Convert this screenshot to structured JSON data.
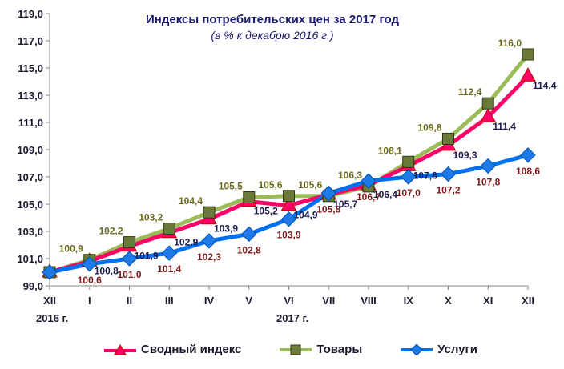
{
  "chart_data": {
    "type": "line",
    "title": "Индексы потребительских цен за  2017 год",
    "subtitle": "(в % к декабрю 2016 г.)",
    "categories": [
      "XII",
      "I",
      "II",
      "III",
      "IV",
      "V",
      "VI",
      "VII",
      "VIII",
      "IX",
      "X",
      "XI",
      "XII"
    ],
    "year_labels": {
      "first": "2016 г.",
      "middle": "2017 г."
    },
    "ylim": [
      99,
      119
    ],
    "yticks": [
      "99,0",
      "101,0",
      "103,0",
      "105,0",
      "107,0",
      "109,0",
      "111,0",
      "113,0",
      "115,0",
      "117,0",
      "119,0"
    ],
    "series": [
      {
        "name": "Сводный индекс",
        "color": "#ff0066",
        "label_color": "#1a1a4e",
        "values": [
          100,
          100.8,
          101.9,
          102.9,
          103.9,
          105.2,
          104.9,
          105.7,
          106.4,
          107.8,
          109.3,
          111.4,
          114.4
        ],
        "labels": [
          "",
          "100,8",
          "101,9",
          "102,9",
          "103,9",
          "105,2",
          "104,9",
          "105,7",
          "106,4",
          "107,8",
          "109,3",
          "111,4",
          "114,4"
        ]
      },
      {
        "name": "Товары",
        "color": "#9bbb59",
        "label_color": "#6b6b1e",
        "values": [
          100,
          100.9,
          102.2,
          103.2,
          104.4,
          105.5,
          105.6,
          105.6,
          106.3,
          108.1,
          109.8,
          112.4,
          116.0
        ],
        "labels": [
          "",
          "100,9",
          "102,2",
          "103,2",
          "104,4",
          "105,5",
          "105,6",
          "105,6",
          "106,3",
          "108,1",
          "109,8",
          "112,4",
          "116,0"
        ]
      },
      {
        "name": "Услуги",
        "color": "#0070f0",
        "label_color": "#7a1a1a",
        "values": [
          100,
          100.6,
          101.0,
          101.4,
          102.3,
          102.8,
          103.9,
          105.8,
          106.7,
          107.0,
          107.2,
          107.8,
          108.6
        ],
        "labels": [
          "",
          "100,6",
          "101,0",
          "101,4",
          "102,3",
          "102,8",
          "103,9",
          "105,8",
          "106,7",
          "107,0",
          "107,2",
          "107,8",
          "108,6"
        ]
      }
    ]
  }
}
